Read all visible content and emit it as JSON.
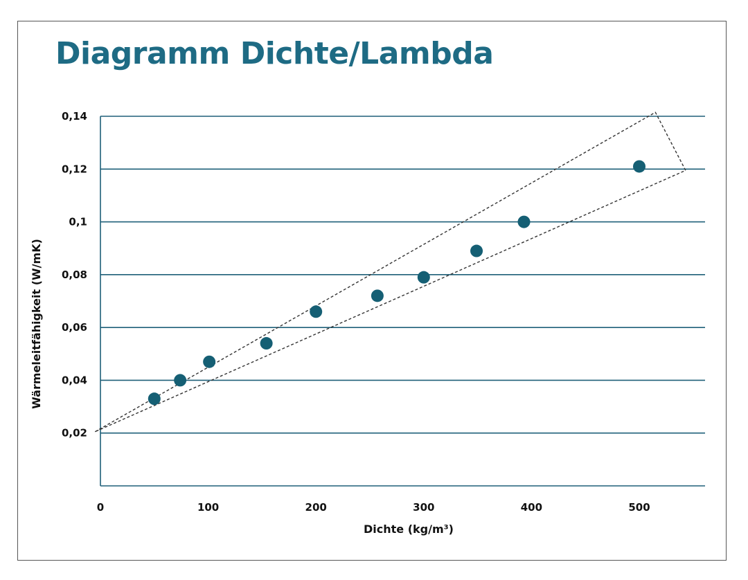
{
  "colors": {
    "title": "#1e6b84",
    "gridline": "#1e5f78",
    "point": "#155f74",
    "envelope": "#333333"
  },
  "chart_data": {
    "type": "scatter",
    "title": "Diagramm Dichte/Lambda",
    "xlabel": "Dichte (kg/m³)",
    "ylabel": "Wärmeleitfähigkeit (W/mK)",
    "xlim": [
      0,
      560
    ],
    "ylim": [
      0,
      0.14
    ],
    "x_ticks": [
      {
        "value": 0,
        "label": "0"
      },
      {
        "value": 100,
        "label": "100"
      },
      {
        "value": 200,
        "label": "200"
      },
      {
        "value": 300,
        "label": "300"
      },
      {
        "value": 400,
        "label": "400"
      },
      {
        "value": 500,
        "label": "500"
      }
    ],
    "y_ticks": [
      {
        "value": 0.02,
        "label": "0,02"
      },
      {
        "value": 0.04,
        "label": "0,04"
      },
      {
        "value": 0.06,
        "label": "0,06"
      },
      {
        "value": 0.08,
        "label": "0,08"
      },
      {
        "value": 0.1,
        "label": "0,1"
      },
      {
        "value": 0.12,
        "label": "0,12"
      },
      {
        "value": 0.14,
        "label": "0,14"
      }
    ],
    "grid": "horizontal",
    "series": [
      {
        "points": [
          {
            "x": 50,
            "y": 0.033
          },
          {
            "x": 74,
            "y": 0.04
          },
          {
            "x": 101,
            "y": 0.047
          },
          {
            "x": 154,
            "y": 0.054
          },
          {
            "x": 200,
            "y": 0.066
          },
          {
            "x": 257,
            "y": 0.072
          },
          {
            "x": 300,
            "y": 0.079
          },
          {
            "x": 349,
            "y": 0.089
          },
          {
            "x": 393,
            "y": 0.1
          },
          {
            "x": 500,
            "y": 0.121
          }
        ]
      }
    ],
    "envelope": {
      "style": "dashed",
      "polygon": [
        {
          "x": -5,
          "y": 0.0205
        },
        {
          "x": 515,
          "y": 0.1415
        },
        {
          "x": 543,
          "y": 0.1195
        }
      ]
    }
  }
}
